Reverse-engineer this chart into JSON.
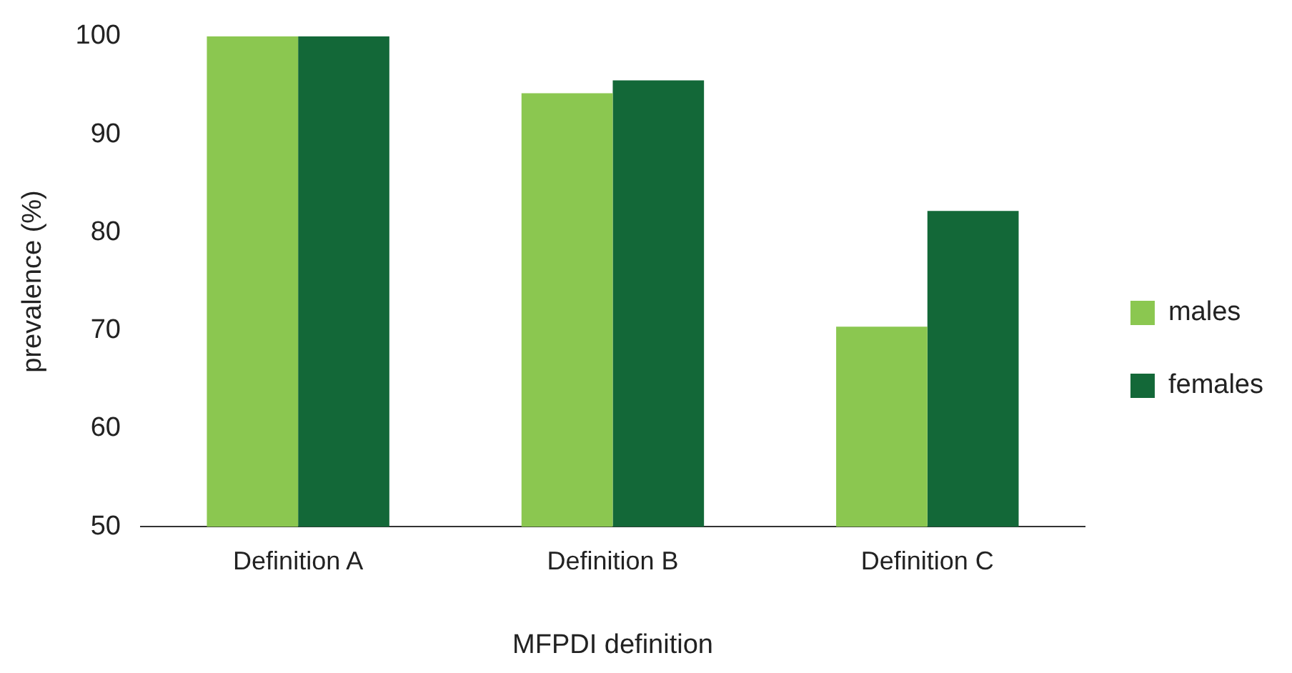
{
  "chart_data": {
    "type": "bar",
    "xlabel": "MFPDI definition",
    "ylabel": "prevalence (%)",
    "categories": [
      "Definition A",
      "Definition B",
      "Definition C"
    ],
    "series": [
      {
        "name": "males",
        "color": "#8bc750",
        "values": [
          100,
          94.2,
          70.4
        ]
      },
      {
        "name": "females",
        "color": "#136838",
        "values": [
          100,
          95.5,
          82.2
        ]
      }
    ],
    "ylim": [
      50,
      100
    ],
    "yticks": [
      50,
      60,
      70,
      80,
      90,
      100
    ],
    "grid": false,
    "legend": "right"
  }
}
